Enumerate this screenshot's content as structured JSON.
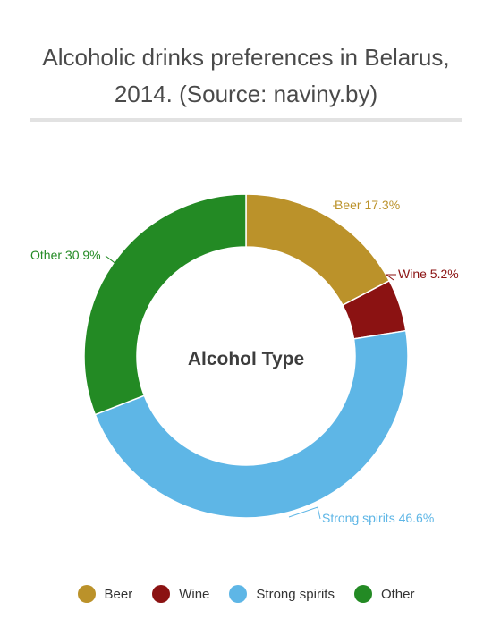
{
  "chart_data": {
    "type": "pie",
    "title": "Alcoholic drinks preferences in Belarus, 2014. (Source: naviny.by)",
    "center_label": "Alcohol Type",
    "donut": true,
    "legend_position": "bottom",
    "slices": [
      {
        "name": "Beer",
        "value": 17.3,
        "label": "Beer 17.3%",
        "color": "#bb922a"
      },
      {
        "name": "Wine",
        "value": 5.2,
        "label": "Wine 5.2%",
        "color": "#8b1212"
      },
      {
        "name": "Strong spirits",
        "value": 46.6,
        "label": "Strong spirits 46.6%",
        "color": "#5eb6e6"
      },
      {
        "name": "Other",
        "value": 30.9,
        "label": "Other 30.9%",
        "color": "#238a24"
      }
    ]
  }
}
